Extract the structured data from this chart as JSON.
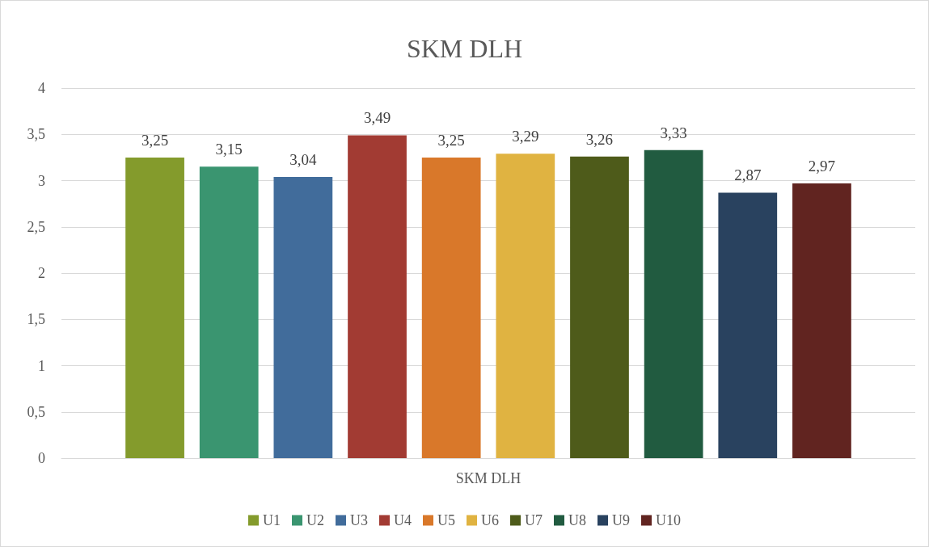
{
  "chart_data": {
    "type": "bar",
    "title": "SKM DLH",
    "categories": [
      "SKM DLH"
    ],
    "series": [
      {
        "name": "U1",
        "color": "#849b2c",
        "values": [
          3.25
        ],
        "value_labels": [
          "3,25"
        ]
      },
      {
        "name": "U2",
        "color": "#3a9570",
        "values": [
          3.15
        ],
        "value_labels": [
          "3,15"
        ]
      },
      {
        "name": "U3",
        "color": "#416c9b",
        "values": [
          3.04
        ],
        "value_labels": [
          "3,04"
        ]
      },
      {
        "name": "U4",
        "color": "#a23b33",
        "values": [
          3.49
        ],
        "value_labels": [
          "3,49"
        ]
      },
      {
        "name": "U5",
        "color": "#d9782a",
        "values": [
          3.25
        ],
        "value_labels": [
          "3,25"
        ]
      },
      {
        "name": "U6",
        "color": "#e0b341",
        "values": [
          3.29
        ],
        "value_labels": [
          "3,29"
        ]
      },
      {
        "name": "U7",
        "color": "#4e5b1a",
        "values": [
          3.26
        ],
        "value_labels": [
          "3,26"
        ]
      },
      {
        "name": "U8",
        "color": "#215b40",
        "values": [
          3.33
        ],
        "value_labels": [
          "3,33"
        ]
      },
      {
        "name": "U9",
        "color": "#29425f",
        "values": [
          2.87
        ],
        "value_labels": [
          "2,87"
        ]
      },
      {
        "name": "U10",
        "color": "#612420",
        "values": [
          2.97
        ],
        "value_labels": [
          "2,97"
        ]
      }
    ],
    "ylim": [
      0,
      4
    ],
    "yticks": [
      0,
      {
        "value": 0.5,
        "label": "0,5"
      },
      1,
      {
        "value": 1.5,
        "label": "1,5"
      },
      2,
      {
        "value": 2.5,
        "label": "2,5"
      },
      3,
      {
        "value": 3.5,
        "label": "3,5"
      },
      4
    ],
    "grid": "y",
    "legend": "bottom"
  }
}
